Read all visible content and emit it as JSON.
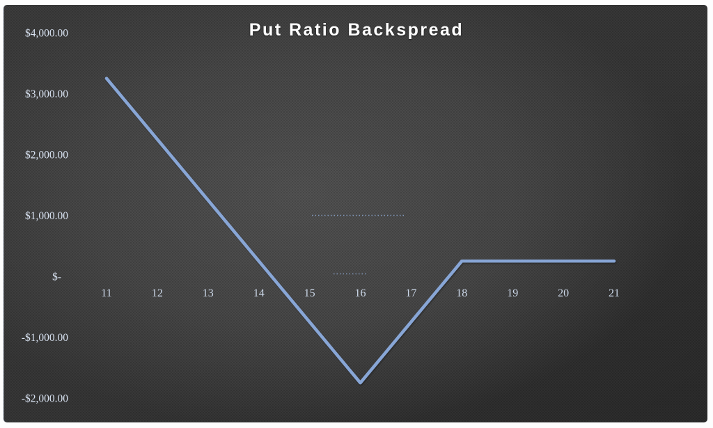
{
  "chart_data": {
    "type": "line",
    "title": "Put Ratio Backspread",
    "x": [
      11,
      12,
      13,
      14,
      15,
      16,
      17,
      18,
      19,
      20,
      21
    ],
    "series": [
      {
        "values": [
          3250,
          2250,
          1250,
          250,
          -750,
          -1750,
          -750,
          250,
          250,
          250,
          250
        ],
        "color": "#88a6d6"
      }
    ],
    "y_ticks": [
      {
        "value": 4000,
        "label": "$4,000.00"
      },
      {
        "value": 3000,
        "label": "$3,000.00"
      },
      {
        "value": 2000,
        "label": "$2,000.00"
      },
      {
        "value": 1000,
        "label": "$1,000.00"
      },
      {
        "value": 0,
        "label": "$-"
      },
      {
        "value": -1000,
        "label": "-$1,000.00"
      },
      {
        "value": -2000,
        "label": "-$2,000.00"
      }
    ],
    "xlabel": "",
    "ylabel": "",
    "ylim": [
      -2400,
      4550
    ],
    "xlim": [
      10.3,
      22.7
    ],
    "grid": true,
    "legend": "none",
    "colors": {
      "line": "#88a6d6",
      "title_text": "#ffffff",
      "axis_label_text": "#d9e3f2",
      "gridline": "rgba(255,255,255,0.16)",
      "plot_background_center": "#515151",
      "plot_background_edge": "#2b2b2b",
      "frame_border": "#ffffff"
    }
  }
}
